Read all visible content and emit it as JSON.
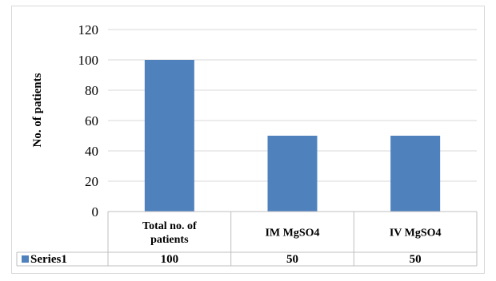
{
  "chart_data": {
    "type": "bar",
    "categories": [
      "Total no. of patients",
      "IM MgSO4",
      "IV MgSO4"
    ],
    "category_lines": [
      [
        "Total no. of",
        "patients"
      ],
      [
        "IM MgSO4"
      ],
      [
        "IV MgSO4"
      ]
    ],
    "series": [
      {
        "name": "Series1",
        "values": [
          100,
          50,
          50
        ],
        "color": "#4f81bd"
      }
    ],
    "table_values": [
      "100",
      "50",
      "50"
    ],
    "ylabel": "No. of patients",
    "ylim": [
      0,
      120
    ],
    "yticks": [
      "0",
      "20",
      "40",
      "60",
      "80",
      "100",
      "120"
    ],
    "grid": true,
    "legend": "data-table"
  }
}
